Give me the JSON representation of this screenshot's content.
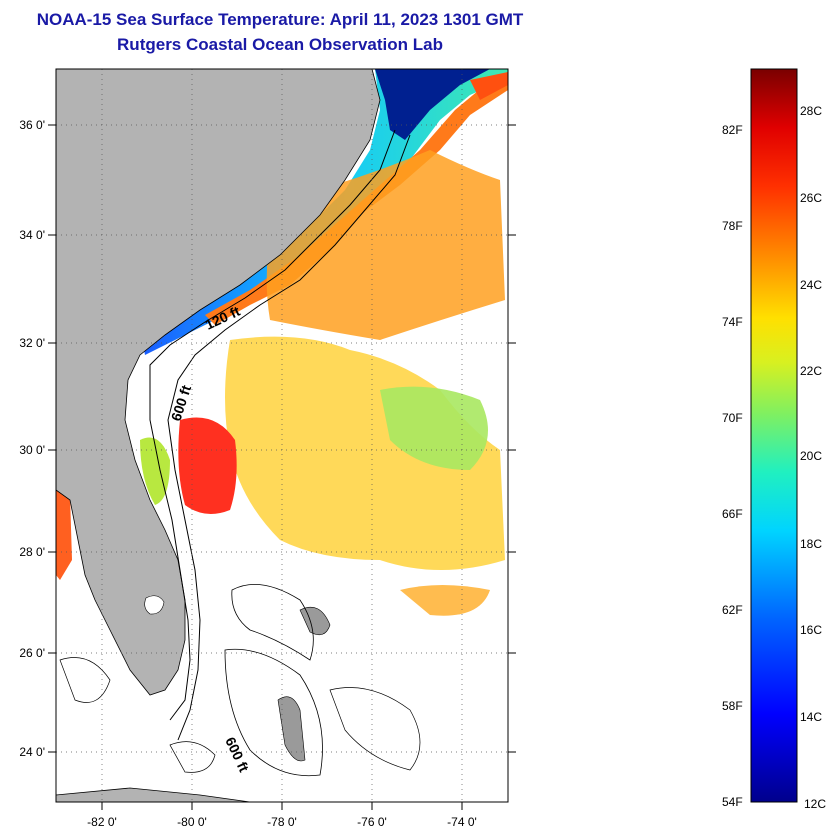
{
  "title": "NOAA-15 Sea Surface Temperature:  April 11, 2023 1301 GMT",
  "subtitle": "Rutgers Coastal Ocean Observation Lab",
  "map": {
    "lat_labels": [
      "36 0'",
      "34 0'",
      "32 0'",
      "30 0'",
      "28 0'",
      "26 0'",
      "24 0'"
    ],
    "lon_labels": [
      "-82 0'",
      "-80 0'",
      "-78 0'",
      "-76 0'",
      "-74 0'"
    ],
    "contour_labels": [
      "120 ft",
      "600 ft",
      "600 ft"
    ],
    "land_color": "#b3b3b3",
    "lat_range": [
      23,
      37
    ],
    "lon_range": [
      -83,
      -73
    ]
  },
  "colorbar": {
    "fahrenheit_labels": [
      "82F",
      "78F",
      "74F",
      "70F",
      "66F",
      "62F",
      "58F",
      "54F"
    ],
    "celsius_labels": [
      "28C",
      "26C",
      "24C",
      "22C",
      "20C",
      "18C",
      "16C",
      "14C",
      "12C"
    ],
    "min_c": 12,
    "max_c": 29
  }
}
